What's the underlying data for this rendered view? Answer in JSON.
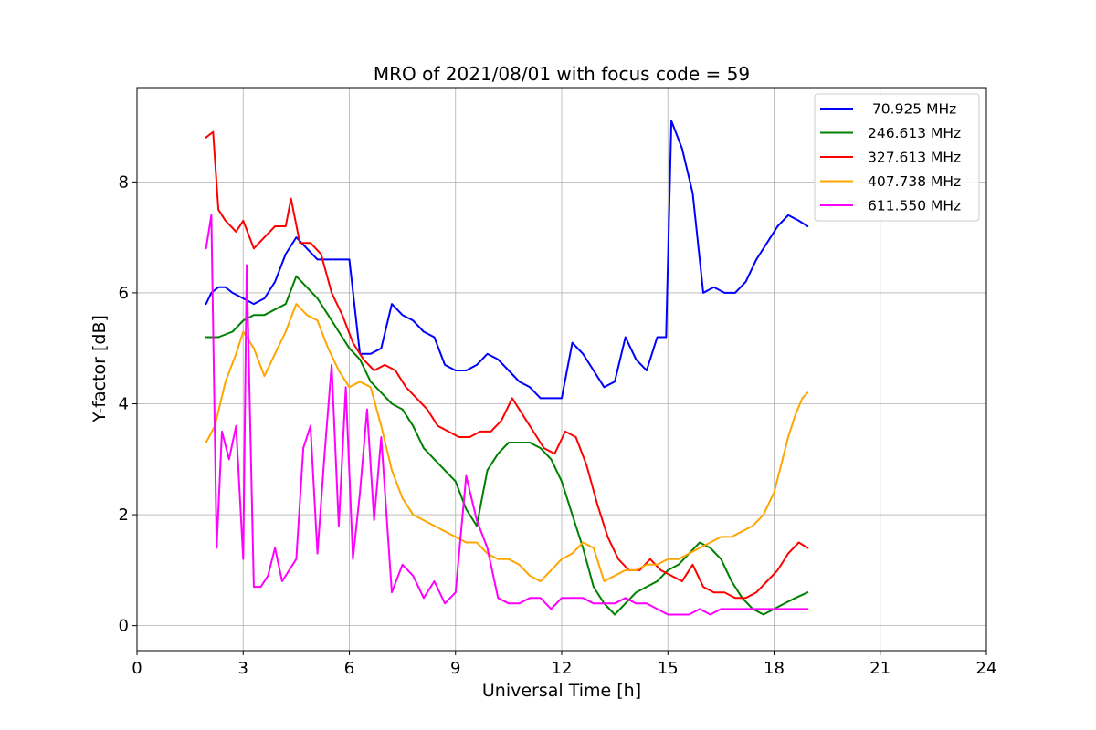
{
  "chart_data": {
    "type": "line",
    "title": "MRO of 2021/08/01 with focus code = 59",
    "xlabel": "Universal Time [h]",
    "ylabel": "Y-factor [dB]",
    "xlim": [
      0,
      24
    ],
    "ylim": [
      -0.45,
      9.7
    ],
    "xticks": [
      0,
      3,
      6,
      9,
      12,
      15,
      18,
      21,
      24
    ],
    "xtick_labels": [
      "0",
      "3",
      "6",
      "9",
      "12",
      "15",
      "18",
      "21",
      "24"
    ],
    "yticks": [
      0,
      2,
      4,
      6,
      8
    ],
    "ytick_labels": [
      "0",
      "2",
      "4",
      "6",
      "8"
    ],
    "grid": true,
    "legend_position": "top-right",
    "series": [
      {
        "name": " 70.925 MHz",
        "color": "#0000ff",
        "x": [
          1.95,
          2.1,
          2.3,
          2.5,
          2.7,
          3.0,
          3.3,
          3.6,
          3.9,
          4.2,
          4.5,
          4.8,
          5.1,
          5.4,
          5.7,
          6.0,
          6.3,
          6.6,
          6.9,
          7.2,
          7.5,
          7.8,
          8.1,
          8.4,
          8.7,
          9.0,
          9.3,
          9.6,
          9.9,
          10.2,
          10.5,
          10.8,
          11.1,
          11.4,
          11.7,
          12.0,
          12.3,
          12.6,
          12.9,
          13.2,
          13.5,
          13.8,
          14.1,
          14.4,
          14.7,
          14.95,
          15.1,
          15.4,
          15.7,
          16.0,
          16.3,
          16.6,
          16.9,
          17.2,
          17.5,
          17.8,
          18.1,
          18.4,
          18.7,
          18.95
        ],
        "y": [
          5.8,
          6.0,
          6.1,
          6.1,
          6.0,
          5.9,
          5.8,
          5.9,
          6.2,
          6.7,
          7.0,
          6.8,
          6.6,
          6.6,
          6.6,
          6.6,
          4.9,
          4.9,
          5.0,
          5.8,
          5.6,
          5.5,
          5.3,
          5.2,
          4.7,
          4.6,
          4.6,
          4.7,
          4.9,
          4.8,
          4.6,
          4.4,
          4.3,
          4.1,
          4.1,
          4.1,
          5.1,
          4.9,
          4.6,
          4.3,
          4.4,
          5.2,
          4.8,
          4.6,
          5.2,
          5.2,
          9.1,
          8.6,
          7.8,
          6.0,
          6.1,
          6.0,
          6.0,
          6.2,
          6.6,
          6.9,
          7.2,
          7.4,
          7.3,
          7.2
        ]
      },
      {
        "name": "246.613 MHz",
        "color": "#008000",
        "x": [
          1.95,
          2.3,
          2.7,
          3.0,
          3.3,
          3.6,
          3.9,
          4.2,
          4.5,
          4.8,
          5.1,
          5.4,
          5.7,
          6.0,
          6.3,
          6.6,
          6.9,
          7.2,
          7.5,
          7.8,
          8.1,
          8.4,
          8.7,
          9.0,
          9.3,
          9.6,
          9.9,
          10.2,
          10.5,
          10.8,
          11.1,
          11.4,
          11.7,
          12.0,
          12.3,
          12.6,
          12.9,
          13.2,
          13.5,
          13.8,
          14.1,
          14.4,
          14.7,
          15.0,
          15.3,
          15.6,
          15.9,
          16.2,
          16.5,
          16.8,
          17.1,
          17.4,
          17.7,
          18.0,
          18.3,
          18.6,
          18.95
        ],
        "y": [
          5.2,
          5.2,
          5.3,
          5.5,
          5.6,
          5.6,
          5.7,
          5.8,
          6.3,
          6.1,
          5.9,
          5.6,
          5.3,
          5.0,
          4.8,
          4.4,
          4.2,
          4.0,
          3.9,
          3.6,
          3.2,
          3.0,
          2.8,
          2.6,
          2.1,
          1.8,
          2.8,
          3.1,
          3.3,
          3.3,
          3.3,
          3.2,
          3.0,
          2.6,
          2.0,
          1.4,
          0.7,
          0.4,
          0.2,
          0.4,
          0.6,
          0.7,
          0.8,
          1.0,
          1.1,
          1.3,
          1.5,
          1.4,
          1.2,
          0.8,
          0.5,
          0.3,
          0.2,
          0.3,
          0.4,
          0.5,
          0.6
        ]
      },
      {
        "name": "327.613 MHz",
        "color": "#ff0000",
        "x": [
          1.95,
          2.15,
          2.3,
          2.5,
          2.8,
          3.0,
          3.3,
          3.6,
          3.9,
          4.2,
          4.35,
          4.6,
          4.9,
          5.2,
          5.5,
          5.8,
          6.1,
          6.4,
          6.7,
          7.0,
          7.3,
          7.6,
          7.9,
          8.2,
          8.5,
          8.8,
          9.1,
          9.4,
          9.7,
          10.0,
          10.3,
          10.6,
          10.9,
          11.2,
          11.5,
          11.8,
          12.1,
          12.4,
          12.7,
          13.0,
          13.3,
          13.6,
          13.9,
          14.2,
          14.5,
          14.8,
          15.1,
          15.4,
          15.7,
          16.0,
          16.3,
          16.6,
          16.9,
          17.2,
          17.5,
          17.8,
          18.1,
          18.4,
          18.7,
          18.95
        ],
        "y": [
          8.8,
          8.9,
          7.5,
          7.3,
          7.1,
          7.3,
          6.8,
          7.0,
          7.2,
          7.2,
          7.7,
          6.9,
          6.9,
          6.7,
          6.0,
          5.6,
          5.1,
          4.8,
          4.6,
          4.7,
          4.6,
          4.3,
          4.1,
          3.9,
          3.6,
          3.5,
          3.4,
          3.4,
          3.5,
          3.5,
          3.7,
          4.1,
          3.8,
          3.5,
          3.2,
          3.1,
          3.5,
          3.4,
          2.9,
          2.2,
          1.6,
          1.2,
          1.0,
          1.0,
          1.2,
          1.0,
          0.9,
          0.8,
          1.1,
          0.7,
          0.6,
          0.6,
          0.5,
          0.5,
          0.6,
          0.8,
          1.0,
          1.3,
          1.5,
          1.4
        ]
      },
      {
        "name": "407.738 MHz",
        "color": "#ffa500",
        "x": [
          1.95,
          2.2,
          2.5,
          2.8,
          3.0,
          3.3,
          3.6,
          3.9,
          4.2,
          4.5,
          4.8,
          5.1,
          5.4,
          5.7,
          6.0,
          6.3,
          6.6,
          6.9,
          7.2,
          7.5,
          7.8,
          8.1,
          8.4,
          8.7,
          9.0,
          9.3,
          9.6,
          9.9,
          10.2,
          10.5,
          10.8,
          11.1,
          11.4,
          11.7,
          12.0,
          12.3,
          12.6,
          12.9,
          13.2,
          13.5,
          13.8,
          14.1,
          14.4,
          14.7,
          15.0,
          15.3,
          15.6,
          15.9,
          16.2,
          16.5,
          16.8,
          17.1,
          17.4,
          17.7,
          18.0,
          18.2,
          18.4,
          18.6,
          18.8,
          18.95
        ],
        "y": [
          3.3,
          3.6,
          4.4,
          4.9,
          5.3,
          5.0,
          4.5,
          4.9,
          5.3,
          5.8,
          5.6,
          5.5,
          5.0,
          4.6,
          4.3,
          4.4,
          4.3,
          3.6,
          2.8,
          2.3,
          2.0,
          1.9,
          1.8,
          1.7,
          1.6,
          1.5,
          1.5,
          1.3,
          1.2,
          1.2,
          1.1,
          0.9,
          0.8,
          1.0,
          1.2,
          1.3,
          1.5,
          1.4,
          0.8,
          0.9,
          1.0,
          1.0,
          1.1,
          1.1,
          1.2,
          1.2,
          1.3,
          1.4,
          1.5,
          1.6,
          1.6,
          1.7,
          1.8,
          2.0,
          2.4,
          2.9,
          3.4,
          3.8,
          4.1,
          4.2
        ]
      },
      {
        "name": "611.550 MHz",
        "color": "#ff00ff",
        "x": [
          1.95,
          2.1,
          2.25,
          2.4,
          2.6,
          2.8,
          3.0,
          3.1,
          3.3,
          3.5,
          3.7,
          3.9,
          4.1,
          4.3,
          4.5,
          4.7,
          4.9,
          5.1,
          5.3,
          5.5,
          5.7,
          5.9,
          6.1,
          6.3,
          6.5,
          6.7,
          6.9,
          7.2,
          7.5,
          7.8,
          8.1,
          8.4,
          8.7,
          9.0,
          9.3,
          9.6,
          9.9,
          10.2,
          10.5,
          10.8,
          11.1,
          11.4,
          11.7,
          12.0,
          12.3,
          12.6,
          12.9,
          13.2,
          13.5,
          13.8,
          14.1,
          14.4,
          14.7,
          15.0,
          15.3,
          15.6,
          15.9,
          16.2,
          16.5,
          16.8,
          17.1,
          17.4,
          17.7,
          18.0,
          18.3,
          18.6,
          18.95
        ],
        "y": [
          6.8,
          7.4,
          1.4,
          3.5,
          3.0,
          3.6,
          1.2,
          6.5,
          0.7,
          0.7,
          0.9,
          1.4,
          0.8,
          1.0,
          1.2,
          3.2,
          3.6,
          1.3,
          3.1,
          4.7,
          1.8,
          4.3,
          1.2,
          2.4,
          3.9,
          1.9,
          3.4,
          0.6,
          1.1,
          0.9,
          0.5,
          0.8,
          0.4,
          0.6,
          2.7,
          1.9,
          1.4,
          0.5,
          0.4,
          0.4,
          0.5,
          0.5,
          0.3,
          0.5,
          0.5,
          0.5,
          0.4,
          0.4,
          0.4,
          0.5,
          0.4,
          0.4,
          0.3,
          0.2,
          0.2,
          0.2,
          0.3,
          0.2,
          0.3,
          0.3,
          0.3,
          0.3,
          0.3,
          0.3,
          0.3,
          0.3,
          0.3
        ]
      }
    ]
  }
}
